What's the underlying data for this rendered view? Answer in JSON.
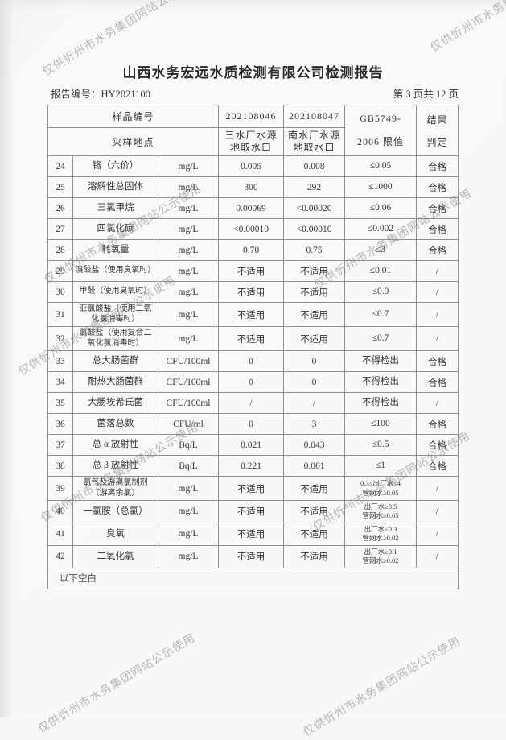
{
  "watermark": {
    "text": "仅供忻州市水务集团网站公示使用"
  },
  "header": {
    "title": "山西水务宏远水质检测有限公司检测报告",
    "report_no_label": "报告编号：",
    "report_no": "HY2021100",
    "page_info": "第 3 页共 12 页"
  },
  "table": {
    "head": {
      "sample_no_label": "样品编号",
      "sample_site_label": "采样地点",
      "sample1_no": "202108046",
      "sample2_no": "202108047",
      "sample1_site": "三水厂水源\n地取水口",
      "sample2_site": "南水厂水源\n地取水口",
      "standard_line1": "GB5749-",
      "standard_line2": "2006 限值",
      "result_line1": "结果",
      "result_line2": "判定"
    },
    "rows": [
      {
        "no": "24",
        "name": "铬（六价）",
        "unit": "mg/L",
        "v1": "0.005",
        "v2": "0.008",
        "limit": "≤0.05",
        "result": "合格"
      },
      {
        "no": "25",
        "name": "溶解性总固体",
        "unit": "mg/L",
        "v1": "300",
        "v2": "292",
        "limit": "≤1000",
        "result": "合格"
      },
      {
        "no": "26",
        "name": "三氯甲烷",
        "unit": "mg/L",
        "v1": "0.00069",
        "v2": "<0.00020",
        "limit": "≤0.06",
        "result": "合格"
      },
      {
        "no": "27",
        "name": "四氯化碳",
        "unit": "mg/L",
        "v1": "<0.00010",
        "v2": "<0.00010",
        "limit": "≤0.002",
        "result": "合格"
      },
      {
        "no": "28",
        "name": "耗氧量",
        "unit": "mg/L",
        "v1": "0.70",
        "v2": "0.75",
        "limit": "≤3",
        "result": "合格"
      },
      {
        "no": "29",
        "name": "溴酸盐（使用臭氧时）",
        "unit": "mg/L",
        "v1": "不适用",
        "v2": "不适用",
        "limit": "≤0.01",
        "result": "/"
      },
      {
        "no": "30",
        "name": "甲醛（使用臭氧时）",
        "unit": "mg/L",
        "v1": "不适用",
        "v2": "不适用",
        "limit": "≤0.9",
        "result": "/"
      },
      {
        "no": "31",
        "name": "亚氯酸盐（使用二氧\n化氯消毒时）",
        "unit": "mg/L",
        "v1": "不适用",
        "v2": "不适用",
        "limit": "≤0.7",
        "result": "/"
      },
      {
        "no": "32",
        "name": "氯酸盐（使用复合二\n氧化氯消毒时）",
        "unit": "mg/L",
        "v1": "不适用",
        "v2": "不适用",
        "limit": "≤0.7",
        "result": "/"
      },
      {
        "no": "33",
        "name": "总大肠菌群",
        "unit": "CFU/100ml",
        "v1": "0",
        "v2": "0",
        "limit": "不得检出",
        "result": "合格"
      },
      {
        "no": "34",
        "name": "耐热大肠菌群",
        "unit": "CFU/100ml",
        "v1": "0",
        "v2": "0",
        "limit": "不得检出",
        "result": "合格"
      },
      {
        "no": "35",
        "name": "大肠埃希氏菌",
        "unit": "CFU/100ml",
        "v1": "/",
        "v2": "/",
        "limit": "不得检出",
        "result": "/"
      },
      {
        "no": "36",
        "name": "菌落总数",
        "unit": "CFU/ml",
        "v1": "0",
        "v2": "3",
        "limit": "≤100",
        "result": "合格"
      },
      {
        "no": "37",
        "name": "总 α 放射性",
        "unit": "Bq/L",
        "v1": "0.021",
        "v2": "0.043",
        "limit": "≤0.5",
        "result": "合格"
      },
      {
        "no": "38",
        "name": "总 β 放射性",
        "unit": "Bq/L",
        "v1": "0.221",
        "v2": "0.061",
        "limit": "≤1",
        "result": "合格"
      },
      {
        "no": "39",
        "name": "氯气及游离氯制剂\n（游离余氯）",
        "unit": "mg/L",
        "v1": "不适用",
        "v2": "不适用",
        "limit": "0.3≤出厂水≤4\n管网水≥0.05",
        "result": "/"
      },
      {
        "no": "40",
        "name": "一氯胺（总氯）",
        "unit": "mg/L",
        "v1": "不适用",
        "v2": "不适用",
        "limit": "出厂水≥0.5\n管网水≥0.05",
        "result": "/"
      },
      {
        "no": "41",
        "name": "臭氧",
        "unit": "mg/L",
        "v1": "不适用",
        "v2": "不适用",
        "limit": "出厂水≤0.3\n管网水≥0.02",
        "result": "/"
      },
      {
        "no": "42",
        "name": "二氧化氯",
        "unit": "mg/L",
        "v1": "不适用",
        "v2": "不适用",
        "limit": "出厂水≥0.1\n管网水≥0.02",
        "result": "/"
      }
    ],
    "footer_note": "以下空白"
  }
}
